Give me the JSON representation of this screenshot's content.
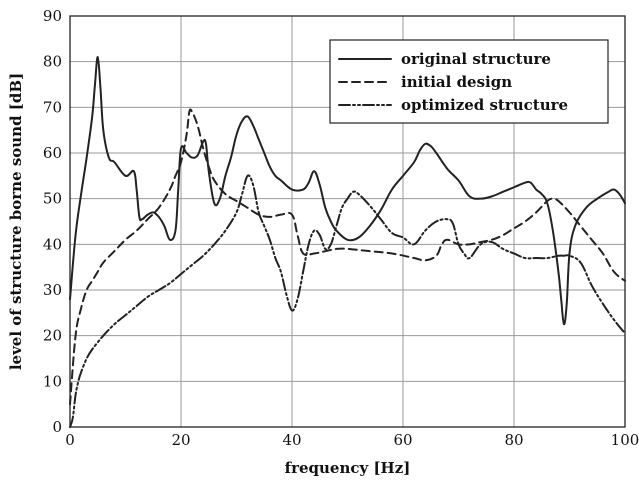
{
  "chart_data": {
    "type": "line",
    "xlabel": "frequency [Hz]",
    "ylabel": "level of structure borne sound [dB]",
    "xlim": [
      0,
      100
    ],
    "ylim": [
      0,
      90
    ],
    "xticks": [
      0,
      20,
      40,
      60,
      80,
      100
    ],
    "yticks": [
      0,
      10,
      20,
      30,
      40,
      50,
      60,
      70,
      80,
      90
    ],
    "grid": true,
    "legend_position": "top-right",
    "series": [
      {
        "name": "original structure",
        "style": "solid",
        "x": [
          0,
          1,
          2,
          3,
          4,
          4.5,
          5,
          5.5,
          6,
          7,
          8,
          10,
          11.5,
          12,
          12.5,
          13,
          14,
          15,
          16,
          17,
          18,
          19,
          19.5,
          20,
          21,
          22,
          23,
          24,
          24.5,
          25,
          26,
          27,
          28,
          29,
          30,
          31,
          32,
          33,
          34,
          35,
          36,
          37,
          38,
          40,
          42,
          43,
          44,
          45,
          46,
          47,
          48,
          50,
          52,
          54,
          56,
          58,
          60,
          62,
          63,
          64,
          65,
          66,
          68,
          70,
          72,
          74,
          76,
          78,
          80,
          82,
          83,
          84,
          85,
          86,
          87,
          88,
          88.5,
          89,
          89.5,
          90,
          91,
          93,
          95,
          97,
          98,
          99,
          100
        ],
        "values": [
          28,
          42,
          51,
          59,
          68,
          75,
          81,
          74,
          65,
          59,
          58,
          55,
          56,
          52,
          46,
          45.5,
          46.5,
          47,
          46,
          44,
          41,
          43,
          52,
          61,
          60,
          59,
          59.5,
          62.5,
          62,
          56,
          49,
          50,
          55,
          59,
          64,
          67,
          68,
          66,
          63,
          60,
          57,
          55,
          54,
          52,
          52,
          53.5,
          56,
          53,
          48,
          45,
          43,
          41,
          41.5,
          44,
          47.5,
          52,
          55,
          58,
          60.5,
          62,
          61.5,
          60,
          56.5,
          54,
          50.5,
          50,
          50.5,
          51.5,
          52.5,
          53.5,
          53.5,
          52,
          51,
          49,
          43,
          34,
          28,
          22.5,
          27,
          38,
          44,
          48,
          50,
          51.5,
          52,
          51,
          49
        ]
      },
      {
        "name": "initial design",
        "style": "dashed",
        "x": [
          0,
          1,
          2,
          3,
          4,
          5,
          6,
          8,
          10,
          12,
          14,
          16,
          18,
          19,
          20,
          21,
          21.5,
          22,
          23,
          24,
          25,
          26,
          28,
          30,
          32,
          34,
          36,
          38,
          40,
          41,
          42,
          44,
          46,
          48,
          50,
          54,
          58,
          62,
          64,
          66,
          67,
          68,
          70,
          72,
          74,
          76,
          78,
          80,
          82,
          84,
          86,
          87,
          88,
          90,
          92,
          94,
          96,
          98,
          100
        ],
        "values": [
          5,
          20,
          26,
          30,
          32,
          34,
          36,
          38.5,
          41,
          43,
          45.5,
          48,
          52,
          55,
          58,
          64,
          69,
          69,
          66,
          61,
          57,
          54,
          51,
          49.5,
          48,
          46.5,
          46,
          46.5,
          46.5,
          42,
          38,
          38,
          38.5,
          39,
          39,
          38.5,
          38,
          37,
          36.5,
          37.5,
          40,
          41,
          40,
          40,
          40.5,
          41,
          42,
          43.5,
          45,
          47,
          49.5,
          50,
          49.5,
          47,
          44,
          41,
          38,
          34,
          32
        ]
      },
      {
        "name": "optimized structure",
        "style": "dash-dot",
        "x": [
          0,
          0.5,
          1,
          1.5,
          2,
          3,
          4,
          6,
          8,
          10,
          12,
          14,
          16,
          18,
          20,
          22,
          24,
          26,
          28,
          30,
          31,
          32,
          33,
          34,
          35,
          36,
          37,
          38,
          39,
          40,
          41,
          42,
          43,
          44,
          45,
          46,
          47,
          48,
          49,
          50,
          51,
          52,
          54,
          56,
          58,
          60,
          62,
          64,
          66,
          68,
          69,
          70,
          71,
          72,
          74,
          76,
          78,
          80,
          82,
          84,
          86,
          88,
          89,
          90,
          92,
          94,
          96,
          98,
          100
        ],
        "values": [
          0,
          2,
          7,
          10,
          12,
          15,
          17,
          20,
          22.5,
          24.5,
          26.5,
          28.5,
          30,
          31.5,
          33.5,
          35.5,
          37.5,
          40,
          43,
          47,
          51,
          55,
          53,
          47,
          44,
          41,
          37,
          34,
          29,
          25.5,
          28,
          34,
          40,
          43,
          42,
          39,
          40,
          44,
          48,
          50,
          51.5,
          51,
          48.5,
          45.5,
          42.5,
          41.5,
          40,
          43,
          45,
          45.5,
          44.5,
          40,
          38,
          37,
          40,
          40.5,
          39,
          38,
          37,
          37,
          37,
          37.5,
          37.5,
          37.5,
          36,
          31,
          27,
          23.5,
          20.5
        ]
      }
    ]
  }
}
